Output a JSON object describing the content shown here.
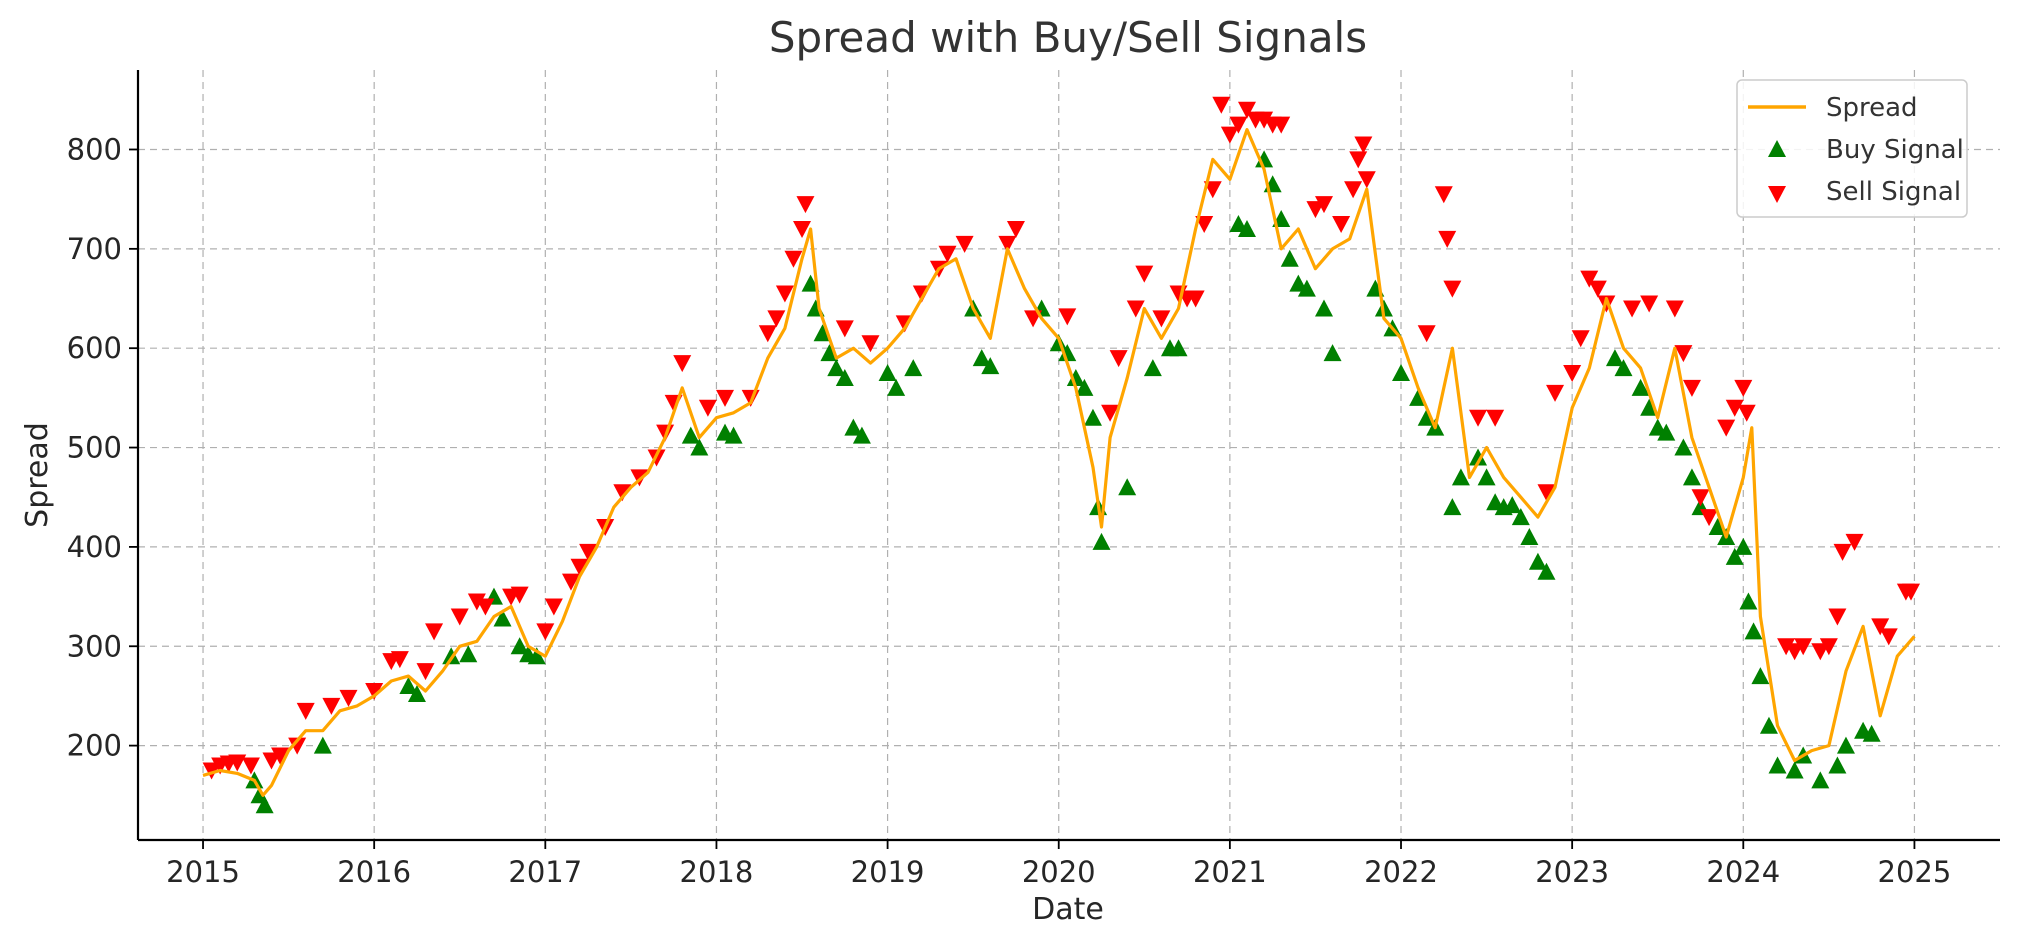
{
  "chart_data": {
    "type": "line",
    "title": "Spread with Buy/Sell Signals",
    "xlabel": "Date",
    "ylabel": "Spread",
    "xlim": [
      2014.62,
      2025.5
    ],
    "ylim": [
      105,
      880
    ],
    "x_ticks": [
      "2015",
      "2016",
      "2017",
      "2018",
      "2019",
      "2020",
      "2021",
      "2022",
      "2023",
      "2024",
      "2025"
    ],
    "y_ticks": [
      "200",
      "300",
      "400",
      "500",
      "600",
      "700",
      "800"
    ],
    "grid": true,
    "legend_position": "top-right",
    "colors": {
      "spread": "#FFA500",
      "buy": "#008000",
      "sell": "#FF0000"
    },
    "series": [
      {
        "name": "Spread",
        "kind": "line",
        "x": [
          2015.0,
          2015.1,
          2015.2,
          2015.3,
          2015.35,
          2015.4,
          2015.5,
          2015.6,
          2015.7,
          2015.8,
          2015.9,
          2016.0,
          2016.1,
          2016.2,
          2016.3,
          2016.4,
          2016.5,
          2016.6,
          2016.7,
          2016.8,
          2016.9,
          2017.0,
          2017.1,
          2017.2,
          2017.3,
          2017.4,
          2017.5,
          2017.6,
          2017.7,
          2017.8,
          2017.9,
          2018.0,
          2018.1,
          2018.2,
          2018.3,
          2018.4,
          2018.5,
          2018.55,
          2018.6,
          2018.7,
          2018.8,
          2018.9,
          2019.0,
          2019.1,
          2019.2,
          2019.3,
          2019.4,
          2019.5,
          2019.6,
          2019.7,
          2019.8,
          2019.9,
          2020.0,
          2020.1,
          2020.2,
          2020.25,
          2020.3,
          2020.4,
          2020.5,
          2020.6,
          2020.7,
          2020.8,
          2020.9,
          2021.0,
          2021.1,
          2021.2,
          2021.3,
          2021.4,
          2021.5,
          2021.6,
          2021.7,
          2021.8,
          2021.9,
          2022.0,
          2022.1,
          2022.2,
          2022.25,
          2022.3,
          2022.4,
          2022.5,
          2022.6,
          2022.7,
          2022.8,
          2022.9,
          2023.0,
          2023.1,
          2023.2,
          2023.3,
          2023.4,
          2023.5,
          2023.6,
          2023.7,
          2023.8,
          2023.9,
          2024.0,
          2024.05,
          2024.1,
          2024.2,
          2024.3,
          2024.4,
          2024.5,
          2024.6,
          2024.7,
          2024.8,
          2024.9,
          2025.0
        ],
        "values": [
          170,
          175,
          172,
          165,
          150,
          160,
          195,
          215,
          215,
          235,
          240,
          250,
          265,
          270,
          255,
          275,
          300,
          305,
          330,
          340,
          300,
          290,
          325,
          370,
          400,
          440,
          460,
          475,
          510,
          560,
          510,
          530,
          535,
          545,
          590,
          620,
          690,
          720,
          640,
          590,
          600,
          585,
          600,
          620,
          650,
          680,
          690,
          640,
          610,
          700,
          660,
          630,
          610,
          560,
          480,
          420,
          510,
          570,
          640,
          610,
          640,
          720,
          790,
          770,
          820,
          780,
          700,
          720,
          680,
          700,
          710,
          760,
          630,
          610,
          560,
          520,
          560,
          600,
          470,
          500,
          470,
          450,
          430,
          460,
          540,
          580,
          650,
          600,
          580,
          530,
          600,
          510,
          460,
          410,
          470,
          520,
          330,
          220,
          185,
          195,
          200,
          275,
          320,
          230,
          290,
          310
        ]
      },
      {
        "name": "Buy Signal",
        "kind": "scatter",
        "marker": "triangle-up",
        "x": [
          2015.3,
          2015.33,
          2015.36,
          2015.7,
          2016.2,
          2016.25,
          2016.45,
          2016.55,
          2016.7,
          2016.75,
          2016.85,
          2016.9,
          2016.95,
          2017.85,
          2017.9,
          2018.05,
          2018.1,
          2018.55,
          2018.58,
          2018.62,
          2018.66,
          2018.7,
          2018.75,
          2018.8,
          2018.85,
          2019.0,
          2019.05,
          2019.15,
          2019.5,
          2019.55,
          2019.6,
          2019.9,
          2020.0,
          2020.05,
          2020.1,
          2020.15,
          2020.2,
          2020.23,
          2020.25,
          2020.4,
          2020.55,
          2020.65,
          2020.7,
          2021.05,
          2021.1,
          2021.2,
          2021.25,
          2021.3,
          2021.35,
          2021.4,
          2021.45,
          2021.55,
          2021.6,
          2021.85,
          2021.9,
          2021.95,
          2022.0,
          2022.1,
          2022.15,
          2022.2,
          2022.3,
          2022.35,
          2022.45,
          2022.5,
          2022.55,
          2022.6,
          2022.65,
          2022.7,
          2022.75,
          2022.8,
          2022.85,
          2023.25,
          2023.3,
          2023.4,
          2023.45,
          2023.5,
          2023.55,
          2023.65,
          2023.7,
          2023.75,
          2023.85,
          2023.9,
          2023.95,
          2024.0,
          2024.03,
          2024.06,
          2024.1,
          2024.15,
          2024.2,
          2024.3,
          2024.35,
          2024.45,
          2024.55,
          2024.6,
          2024.7,
          2024.75
        ],
        "values": [
          165,
          150,
          140,
          200,
          260,
          252,
          290,
          292,
          350,
          328,
          300,
          292,
          290,
          512,
          500,
          515,
          512,
          665,
          640,
          615,
          595,
          580,
          570,
          520,
          512,
          575,
          560,
          580,
          640,
          590,
          582,
          640,
          605,
          595,
          570,
          560,
          530,
          440,
          405,
          460,
          580,
          600,
          600,
          725,
          720,
          790,
          765,
          730,
          690,
          665,
          660,
          640,
          595,
          660,
          640,
          620,
          575,
          550,
          530,
          520,
          440,
          470,
          490,
          470,
          445,
          440,
          442,
          430,
          410,
          385,
          375,
          590,
          580,
          560,
          540,
          520,
          515,
          500,
          470,
          440,
          420,
          410,
          390,
          400,
          345,
          315,
          270,
          220,
          180,
          175,
          190,
          165,
          180,
          200,
          215,
          212
        ]
      },
      {
        "name": "Sell Signal",
        "kind": "scatter",
        "marker": "triangle-down",
        "x": [
          2015.05,
          2015.1,
          2015.15,
          2015.2,
          2015.28,
          2015.4,
          2015.45,
          2015.55,
          2015.6,
          2015.75,
          2015.85,
          2016.0,
          2016.1,
          2016.15,
          2016.3,
          2016.35,
          2016.5,
          2016.6,
          2016.65,
          2016.8,
          2016.85,
          2017.0,
          2017.05,
          2017.15,
          2017.2,
          2017.25,
          2017.35,
          2017.45,
          2017.55,
          2017.65,
          2017.7,
          2017.75,
          2017.8,
          2017.95,
          2018.05,
          2018.2,
          2018.3,
          2018.35,
          2018.4,
          2018.45,
          2018.5,
          2018.52,
          2018.75,
          2018.9,
          2019.1,
          2019.2,
          2019.3,
          2019.35,
          2019.45,
          2019.7,
          2019.75,
          2019.85,
          2020.05,
          2020.3,
          2020.35,
          2020.45,
          2020.5,
          2020.6,
          2020.7,
          2020.75,
          2020.8,
          2020.85,
          2020.9,
          2020.95,
          2021.0,
          2021.05,
          2021.1,
          2021.15,
          2021.2,
          2021.25,
          2021.3,
          2021.5,
          2021.55,
          2021.65,
          2021.72,
          2021.75,
          2021.78,
          2021.8,
          2022.15,
          2022.25,
          2022.27,
          2022.3,
          2022.45,
          2022.55,
          2022.85,
          2022.9,
          2023.0,
          2023.05,
          2023.1,
          2023.15,
          2023.2,
          2023.35,
          2023.45,
          2023.6,
          2023.65,
          2023.7,
          2023.75,
          2023.8,
          2023.9,
          2023.95,
          2024.0,
          2024.02,
          2024.25,
          2024.3,
          2024.35,
          2024.45,
          2024.5,
          2024.55,
          2024.58,
          2024.65,
          2024.8,
          2024.85,
          2024.95,
          2024.98
        ],
        "values": [
          175,
          180,
          182,
          183,
          180,
          185,
          190,
          200,
          235,
          240,
          248,
          255,
          285,
          287,
          275,
          315,
          330,
          345,
          340,
          350,
          352,
          315,
          340,
          365,
          380,
          395,
          420,
          455,
          470,
          490,
          515,
          545,
          585,
          540,
          550,
          550,
          615,
          630,
          655,
          690,
          720,
          745,
          620,
          605,
          625,
          655,
          680,
          695,
          705,
          705,
          720,
          630,
          632,
          535,
          590,
          640,
          675,
          630,
          655,
          650,
          650,
          725,
          760,
          845,
          815,
          825,
          840,
          830,
          830,
          825,
          825,
          740,
          745,
          725,
          760,
          790,
          805,
          770,
          615,
          755,
          710,
          660,
          530,
          530,
          455,
          555,
          575,
          610,
          670,
          660,
          645,
          640,
          645,
          640,
          595,
          560,
          450,
          430,
          520,
          540,
          560,
          535,
          300,
          295,
          300,
          295,
          300,
          330,
          395,
          405,
          320,
          310,
          355,
          355
        ]
      }
    ]
  },
  "legend": {
    "spread": "Spread",
    "buy": "Buy Signal",
    "sell": "Sell Signal"
  }
}
